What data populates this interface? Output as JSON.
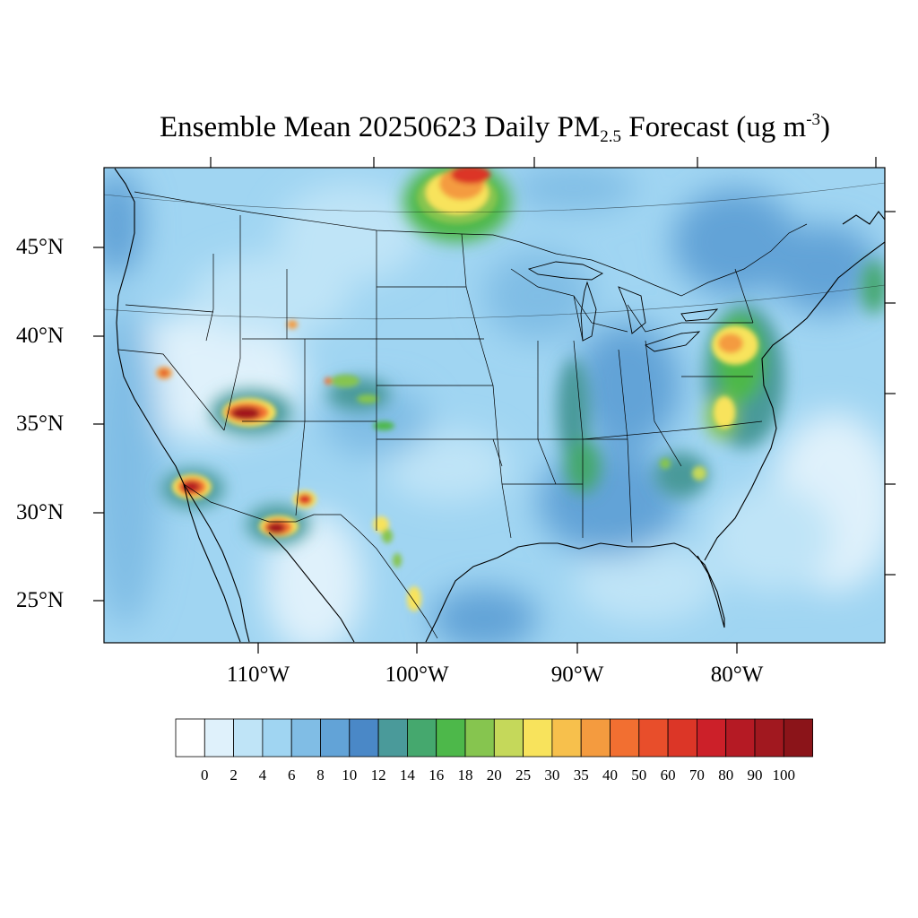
{
  "title": {
    "main": "Ensemble Mean 20250623 Daily PM",
    "sub": "2.5",
    "mid": " Forecast (ug m",
    "sup": "-3",
    "end": ")"
  },
  "lat_labels": [
    "45°N",
    "40°N",
    "35°N",
    "30°N",
    "25°N"
  ],
  "lon_labels": [
    "110°W",
    "100°W",
    "90°W",
    "80°W"
  ],
  "colorbar": {
    "labels": [
      "0",
      "2",
      "4",
      "6",
      "8",
      "10",
      "12",
      "14",
      "16",
      "18",
      "20",
      "25",
      "30",
      "35",
      "40",
      "50",
      "60",
      "70",
      "80",
      "90",
      "100"
    ],
    "colors": [
      "#ffffff",
      "#dff1fb",
      "#bfe4f7",
      "#a0d5f2",
      "#80bde5",
      "#62a3d7",
      "#4a88c7",
      "#4a9a9a",
      "#45a86e",
      "#4db84a",
      "#86c54f",
      "#c5d85a",
      "#f8e35c",
      "#f7c04c",
      "#f49b3f",
      "#f26f31",
      "#e84e2b",
      "#dc3627",
      "#cc2029",
      "#b51a24",
      "#a1181f",
      "#8b1419"
    ]
  },
  "plumes": [
    {
      "region": "Southern Manitoba / Minnesota border",
      "peak_ug_m3": 40
    },
    {
      "region": "Northern Arizona",
      "peak_ug_m3": 80
    },
    {
      "region": "Southeast California / Arizona border",
      "peak_ug_m3": 70
    },
    {
      "region": "Chihuahua, Mexico",
      "peak_ug_m3": 80
    },
    {
      "region": "Southern New Mexico",
      "peak_ug_m3": 60
    },
    {
      "region": "Northern Nevada",
      "peak_ug_m3": 40
    },
    {
      "region": "Central Colorado",
      "peak_ug_m3": 25
    },
    {
      "region": "Mid-Atlantic / Pennsylvania",
      "peak_ug_m3": 35
    },
    {
      "region": "North Carolina / Virginia",
      "peak_ug_m3": 30
    },
    {
      "region": "West Texas / Mexico border",
      "peak_ug_m3": 30
    }
  ]
}
